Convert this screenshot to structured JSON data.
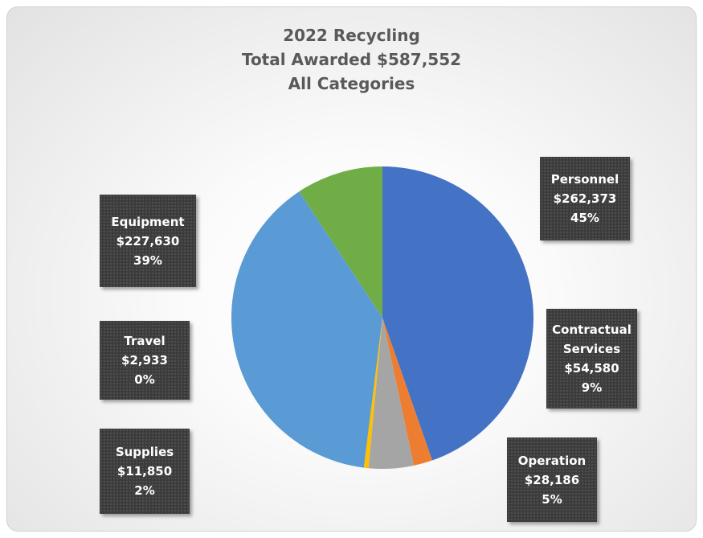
{
  "chart_data": {
    "type": "pie",
    "title": [
      "2022 Recycling",
      "Total Awarded $587,552",
      "All Categories"
    ],
    "categories": [
      "Personnel",
      "Supplies",
      "Operation",
      "Travel",
      "Equipment",
      "Contractual Services"
    ],
    "values": [
      262373,
      11850,
      28186,
      2933,
      227630,
      54580
    ],
    "value_labels": [
      "$262,373",
      "$11,850",
      "$28,186",
      "$2,933",
      "$227,630",
      "$54,580"
    ],
    "percent_labels": [
      "45%",
      "2%",
      "5%",
      "0%",
      "39%",
      "9%"
    ],
    "colors": [
      "#4472c4",
      "#ed7d31",
      "#a5a5a5",
      "#ffc000",
      "#5b9bd5",
      "#70ad47"
    ]
  }
}
